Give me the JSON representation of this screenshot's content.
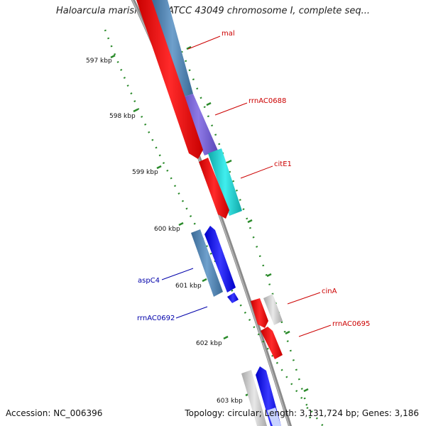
{
  "title": "Haloarcula marismortui ATCC 43049 chromosome I, complete seq...",
  "accession": "Accession: NC_006396",
  "topology": "Topology: circular; Length: 3,131,724 bp; Genes: 3,186",
  "colors": {
    "backbone": "#8a8a8a",
    "tick": "#2a8a2a",
    "red": "#ff1a1a",
    "steelblue": "#4f86b8",
    "purple": "#7a64d4",
    "cyan": "#1fd0d0",
    "blue": "#1a1aff",
    "grey": "#c8c8c8",
    "label_red": "#cc0000",
    "label_blue": "#0000aa"
  },
  "ticks": [
    "597 kbp",
    "598 kbp",
    "599 kbp",
    "600 kbp",
    "601 kbp",
    "602 kbp",
    "603 kbp"
  ],
  "labels": {
    "mal": "mal",
    "rrnAC0688": "rrnAC0688",
    "citE1": "citE1",
    "aspC4": "aspC4",
    "rrnAC0692": "rrnAC0692",
    "cinA": "cinA",
    "rrnAC0695": "rrnAC0695"
  },
  "features": [
    {
      "name": "mal",
      "color": "red"
    },
    {
      "name": "mal",
      "color": "steelblue"
    },
    {
      "name": "rrnAC0688",
      "color": "purple"
    },
    {
      "name": "citE1",
      "color": "cyan"
    },
    {
      "name": "citE1",
      "color": "red"
    },
    {
      "name": "aspC4",
      "color": "steelblue"
    },
    {
      "name": "aspC4",
      "color": "blue"
    },
    {
      "name": "rrnAC0692",
      "color": "blue"
    },
    {
      "name": "cinA",
      "color": "red"
    },
    {
      "name": "cinA",
      "color": "grey"
    },
    {
      "name": "rrnAC0695",
      "color": "red"
    },
    {
      "name": "rrnAC0695",
      "color": "grey"
    },
    {
      "name": "rrnAC0695",
      "color": "blue"
    }
  ]
}
